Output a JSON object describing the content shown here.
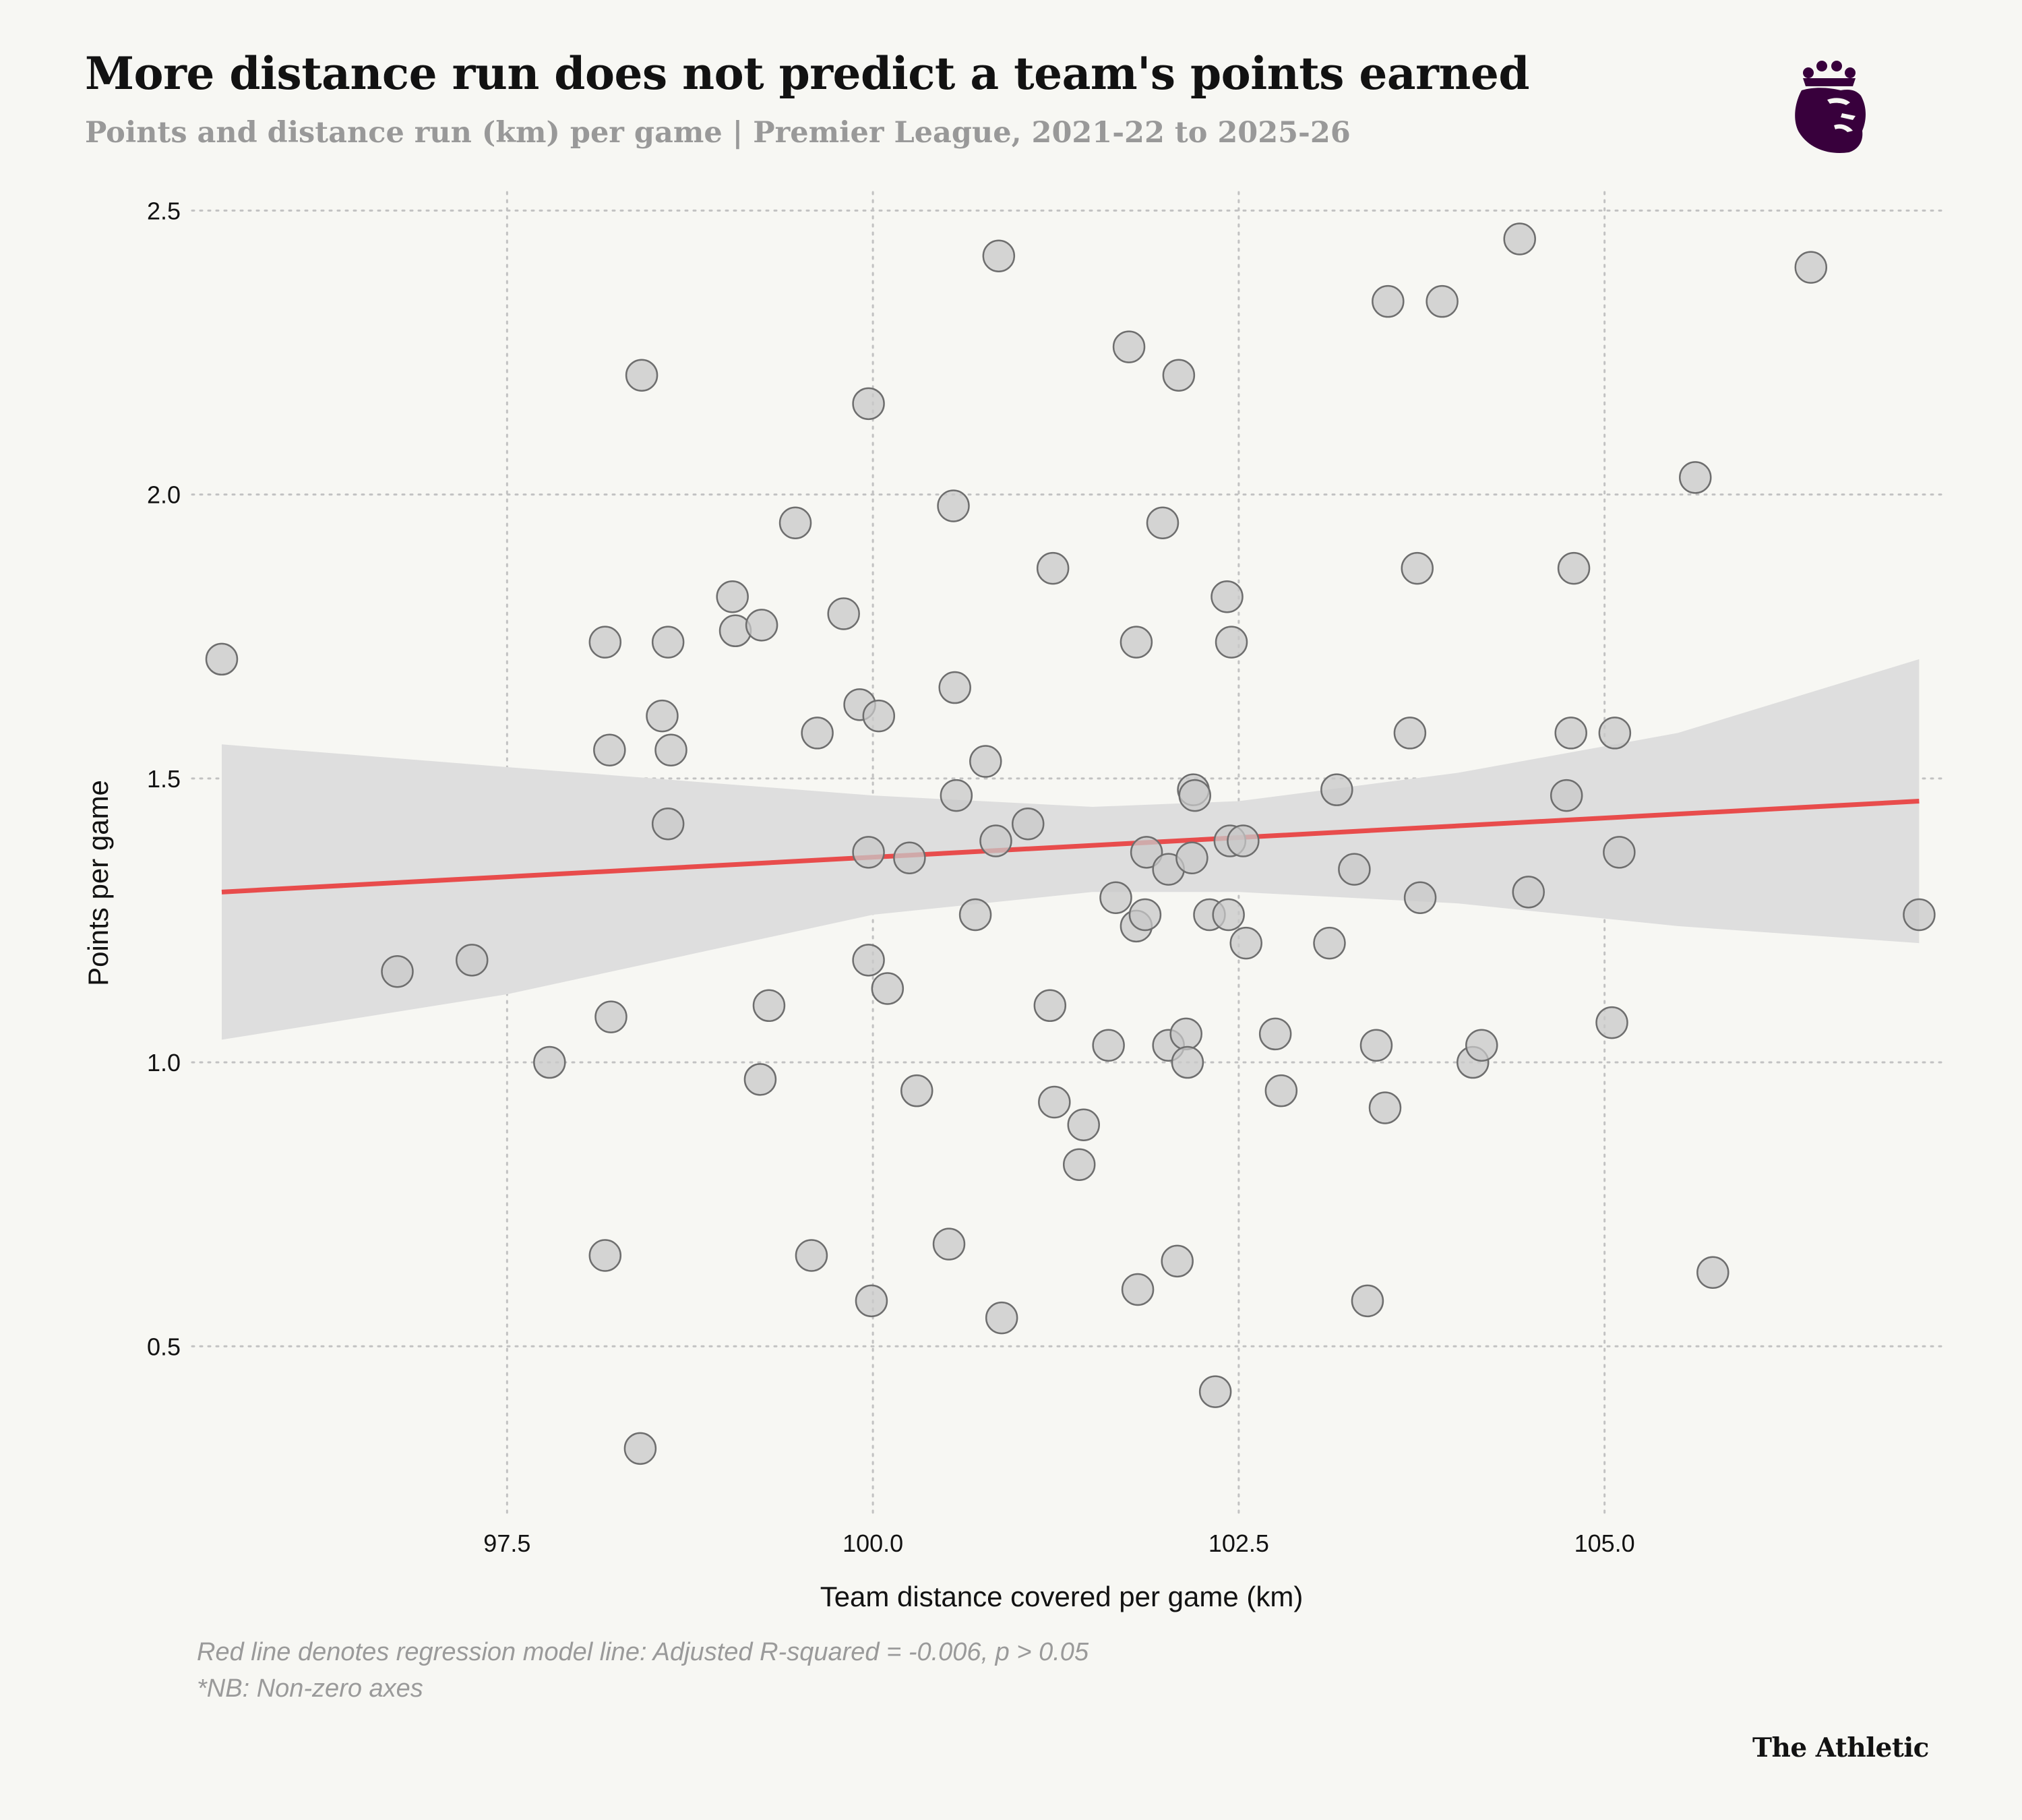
{
  "header": {
    "title": "More distance run does not predict a team's points earned",
    "subtitle": "Points and distance run (km) per game | Premier League, 2021-22 to 2025-26"
  },
  "logo": {
    "name": "premier-league-lion-icon",
    "color": "#38003c"
  },
  "footer": {
    "note_line1": "Red line denotes regression model line: Adjusted R-squared = -0.006, p > 0.05",
    "note_line2": "*NB: Non-zero axes",
    "brand": "The Athletic"
  },
  "chart_data": {
    "type": "scatter",
    "title": "More distance run does not predict a team's points earned",
    "xlabel": "Team distance covered per game (km)",
    "ylabel": "Points per game",
    "xlim": [
      95.2,
      107.3
    ],
    "ylim": [
      0.2,
      2.58
    ],
    "xticks": [
      97.5,
      100.0,
      102.5,
      105.0
    ],
    "xtick_labels": [
      "97.5",
      "100.0",
      "102.5",
      "105.0"
    ],
    "yticks": [
      0.5,
      1.0,
      1.5,
      2.0,
      2.5
    ],
    "ytick_labels": [
      "0.5",
      "1.0",
      "1.5",
      "2.0",
      "2.5"
    ],
    "grid": true,
    "colors": {
      "points": "#c8c8c8",
      "point_stroke": "#6e6e6e",
      "regression": "#e84c4c",
      "band": "#dedede"
    },
    "regression": {
      "x": [
        95.55,
        107.15
      ],
      "y": [
        1.3,
        1.46
      ]
    },
    "confidence_band": {
      "x": [
        95.55,
        97.5,
        100.0,
        101.5,
        102.5,
        104.0,
        105.5,
        107.15
      ],
      "upper": [
        1.56,
        1.52,
        1.47,
        1.45,
        1.46,
        1.51,
        1.58,
        1.71
      ],
      "lower": [
        1.04,
        1.12,
        1.26,
        1.3,
        1.3,
        1.28,
        1.24,
        1.21
      ]
    },
    "points": [
      {
        "x": 95.55,
        "y": 1.71
      },
      {
        "x": 96.75,
        "y": 1.16
      },
      {
        "x": 97.26,
        "y": 1.18
      },
      {
        "x": 97.79,
        "y": 1.0
      },
      {
        "x": 98.17,
        "y": 1.74
      },
      {
        "x": 98.2,
        "y": 1.55
      },
      {
        "x": 98.21,
        "y": 1.08
      },
      {
        "x": 98.17,
        "y": 0.66
      },
      {
        "x": 98.42,
        "y": 2.21
      },
      {
        "x": 98.56,
        "y": 1.61
      },
      {
        "x": 98.6,
        "y": 1.74
      },
      {
        "x": 98.62,
        "y": 1.55
      },
      {
        "x": 98.6,
        "y": 1.42
      },
      {
        "x": 98.41,
        "y": 0.32
      },
      {
        "x": 99.04,
        "y": 1.82
      },
      {
        "x": 99.06,
        "y": 1.76
      },
      {
        "x": 99.24,
        "y": 1.77
      },
      {
        "x": 99.23,
        "y": 0.97
      },
      {
        "x": 99.29,
        "y": 1.1
      },
      {
        "x": 99.47,
        "y": 1.95
      },
      {
        "x": 99.58,
        "y": 0.66
      },
      {
        "x": 99.62,
        "y": 1.58
      },
      {
        "x": 99.8,
        "y": 1.79
      },
      {
        "x": 99.91,
        "y": 1.63
      },
      {
        "x": 99.97,
        "y": 2.16
      },
      {
        "x": 99.97,
        "y": 1.37
      },
      {
        "x": 99.97,
        "y": 1.18
      },
      {
        "x": 99.99,
        "y": 0.58
      },
      {
        "x": 100.04,
        "y": 1.61
      },
      {
        "x": 100.1,
        "y": 1.13
      },
      {
        "x": 100.25,
        "y": 1.36
      },
      {
        "x": 100.3,
        "y": 0.95
      },
      {
        "x": 100.55,
        "y": 1.98
      },
      {
        "x": 100.56,
        "y": 1.66
      },
      {
        "x": 100.57,
        "y": 1.47
      },
      {
        "x": 100.52,
        "y": 0.68
      },
      {
        "x": 100.7,
        "y": 1.26
      },
      {
        "x": 100.77,
        "y": 1.53
      },
      {
        "x": 100.84,
        "y": 1.39
      },
      {
        "x": 100.86,
        "y": 2.42
      },
      {
        "x": 100.88,
        "y": 0.55
      },
      {
        "x": 101.06,
        "y": 1.42
      },
      {
        "x": 101.23,
        "y": 1.87
      },
      {
        "x": 101.21,
        "y": 1.1
      },
      {
        "x": 101.24,
        "y": 0.93
      },
      {
        "x": 101.41,
        "y": 0.82
      },
      {
        "x": 101.44,
        "y": 0.89
      },
      {
        "x": 101.61,
        "y": 1.03
      },
      {
        "x": 101.66,
        "y": 1.29
      },
      {
        "x": 101.75,
        "y": 2.26
      },
      {
        "x": 101.8,
        "y": 1.74
      },
      {
        "x": 101.8,
        "y": 1.24
      },
      {
        "x": 101.87,
        "y": 1.37
      },
      {
        "x": 101.86,
        "y": 1.26
      },
      {
        "x": 101.81,
        "y": 0.6
      },
      {
        "x": 101.98,
        "y": 1.95
      },
      {
        "x": 102.02,
        "y": 1.34
      },
      {
        "x": 102.02,
        "y": 1.03
      },
      {
        "x": 102.09,
        "y": 2.21
      },
      {
        "x": 102.08,
        "y": 0.65
      },
      {
        "x": 102.14,
        "y": 1.05
      },
      {
        "x": 102.15,
        "y": 1.0
      },
      {
        "x": 102.19,
        "y": 1.48
      },
      {
        "x": 102.2,
        "y": 1.47
      },
      {
        "x": 102.18,
        "y": 1.36
      },
      {
        "x": 102.3,
        "y": 1.26
      },
      {
        "x": 102.34,
        "y": 0.42
      },
      {
        "x": 102.42,
        "y": 1.82
      },
      {
        "x": 102.45,
        "y": 1.74
      },
      {
        "x": 102.44,
        "y": 1.39
      },
      {
        "x": 102.43,
        "y": 1.26
      },
      {
        "x": 102.53,
        "y": 1.39
      },
      {
        "x": 102.55,
        "y": 1.21
      },
      {
        "x": 102.75,
        "y": 1.05
      },
      {
        "x": 102.79,
        "y": 0.95
      },
      {
        "x": 103.12,
        "y": 1.21
      },
      {
        "x": 103.17,
        "y": 1.48
      },
      {
        "x": 103.29,
        "y": 1.34
      },
      {
        "x": 103.38,
        "y": 0.58
      },
      {
        "x": 103.44,
        "y": 1.03
      },
      {
        "x": 103.52,
        "y": 2.34
      },
      {
        "x": 103.5,
        "y": 0.92
      },
      {
        "x": 103.67,
        "y": 1.58
      },
      {
        "x": 103.72,
        "y": 1.87
      },
      {
        "x": 103.74,
        "y": 1.29
      },
      {
        "x": 103.89,
        "y": 2.34
      },
      {
        "x": 104.1,
        "y": 1.0
      },
      {
        "x": 104.16,
        "y": 1.03
      },
      {
        "x": 104.42,
        "y": 2.45
      },
      {
        "x": 104.48,
        "y": 1.3
      },
      {
        "x": 104.74,
        "y": 1.47
      },
      {
        "x": 104.77,
        "y": 1.58
      },
      {
        "x": 104.79,
        "y": 1.87
      },
      {
        "x": 105.05,
        "y": 1.07
      },
      {
        "x": 105.07,
        "y": 1.58
      },
      {
        "x": 105.1,
        "y": 1.37
      },
      {
        "x": 105.62,
        "y": 2.03
      },
      {
        "x": 105.74,
        "y": 0.63
      },
      {
        "x": 106.41,
        "y": 2.4
      },
      {
        "x": 107.15,
        "y": 1.26
      }
    ]
  }
}
